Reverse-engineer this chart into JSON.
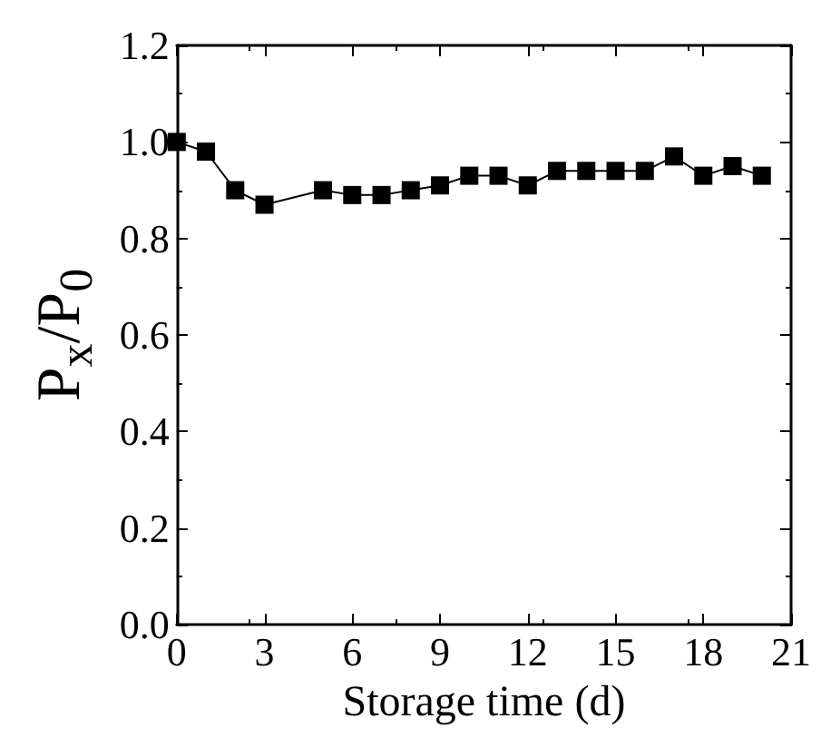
{
  "chart_data": {
    "type": "line",
    "xlabel": "Storage time (d)",
    "ylabel": "P$_{x}$/P$_{0}$",
    "x": [
      0,
      1,
      2,
      3,
      5,
      6,
      7,
      8,
      9,
      10,
      11,
      12,
      13,
      14,
      15,
      16,
      17,
      18,
      19,
      20
    ],
    "series": [
      {
        "color": "#000000",
        "values": [
          1.0,
          0.98,
          0.9,
          0.87,
          0.9,
          0.89,
          0.89,
          0.9,
          0.91,
          0.93,
          0.93,
          0.91,
          0.94,
          0.94,
          0.94,
          0.94,
          0.97,
          0.93,
          0.95,
          0.93
        ]
      }
    ],
    "xlim": [
      0,
      21
    ],
    "xticks": [
      0,
      3,
      6,
      9,
      12,
      15,
      18,
      21
    ],
    "ylim": [
      0,
      1.2
    ],
    "yticks": [
      {
        "value": 0,
        "label": "0.0"
      },
      {
        "value": 0.2,
        "label": "0.2"
      },
      {
        "value": 0.4,
        "label": "0.4"
      },
      {
        "value": 0.6,
        "label": "0.6"
      },
      {
        "value": 0.8,
        "label": "0.8"
      },
      {
        "value": 1.0,
        "label": "1.0"
      },
      {
        "value": 1.2,
        "label": "1.2"
      }
    ],
    "marker": "square",
    "line_style": "solid"
  }
}
